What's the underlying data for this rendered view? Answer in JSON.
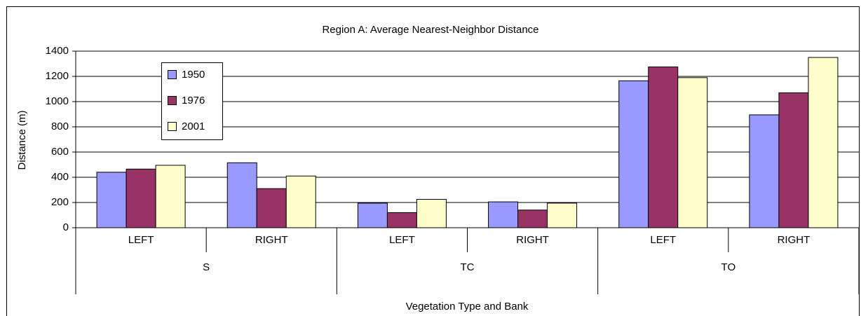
{
  "chart_data": {
    "type": "bar",
    "title": "Region A: Average Nearest-Neighbor Distance",
    "x_label": "Vegetation Type and Bank",
    "y_label": "Distance (m)",
    "categories": [
      "LEFT",
      "RIGHT",
      "LEFT",
      "RIGHT",
      "LEFT",
      "RIGHT"
    ],
    "category_groups": [
      "S",
      "TC",
      "TO"
    ],
    "series": [
      {
        "name": "1950",
        "color": "#9999ff",
        "values": [
          440,
          515,
          195,
          205,
          1165,
          895
        ]
      },
      {
        "name": "1976",
        "color": "#993366",
        "values": [
          465,
          310,
          120,
          140,
          1275,
          1070
        ]
      },
      {
        "name": "2001",
        "color": "#ffffcc",
        "values": [
          495,
          410,
          225,
          195,
          1190,
          1350
        ]
      }
    ],
    "ylim": [
      0,
      1400
    ],
    "yticks": [
      0,
      200,
      400,
      600,
      800,
      1000,
      1200,
      1400
    ],
    "grid": true,
    "legend": "upper-left"
  }
}
